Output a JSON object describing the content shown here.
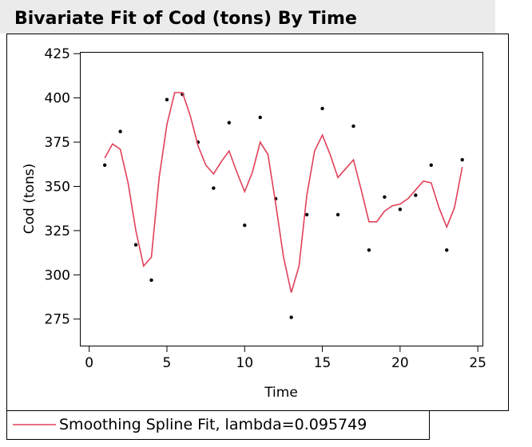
{
  "title": "Bivariate Fit of Cod (tons) By Time",
  "chart_data": {
    "type": "scatter",
    "xlabel": "Time",
    "ylabel": "Cod (tons)",
    "xlim": [
      -0.6,
      25.3
    ],
    "ylim": [
      260,
      426
    ],
    "xticks": [
      0,
      5,
      10,
      15,
      20,
      25
    ],
    "yticks": [
      275,
      300,
      325,
      350,
      375,
      400,
      425
    ],
    "series": [
      {
        "type": "scatter",
        "color": "#000000",
        "x": [
          1,
          2,
          3,
          4,
          5,
          6,
          7,
          8,
          9,
          10,
          11,
          12,
          13,
          14,
          15,
          16,
          17,
          18,
          19,
          20,
          21,
          22,
          23,
          24
        ],
        "values": [
          362,
          381,
          317,
          297,
          399,
          402,
          375,
          349,
          386,
          328,
          389,
          343,
          276,
          334,
          394,
          334,
          384,
          314,
          344,
          337,
          345,
          362,
          314,
          365
        ]
      },
      {
        "type": "line",
        "name": "Smoothing Spline Fit, lambda=0.095749",
        "color": "#e0405a",
        "x": [
          1,
          1.5,
          2,
          2.5,
          3,
          3.5,
          4,
          4.5,
          5,
          5.5,
          6,
          6.5,
          7,
          7.5,
          8,
          8.5,
          9,
          9.5,
          10,
          10.5,
          11,
          11.5,
          12,
          12.5,
          13,
          13.5,
          14,
          14.5,
          15,
          15.5,
          16,
          16.5,
          17,
          17.5,
          18,
          18.5,
          19,
          19.5,
          20,
          20.5,
          21,
          21.5,
          22,
          22.5,
          23,
          23.5,
          24
        ],
        "values": [
          366,
          374,
          371,
          352,
          325,
          305,
          310,
          355,
          385,
          403,
          403,
          390,
          373,
          362,
          357,
          364,
          370,
          358,
          347,
          358,
          375,
          368,
          340,
          310,
          290,
          305,
          345,
          370,
          379,
          368,
          355,
          360,
          365,
          348,
          330,
          330,
          336,
          339,
          340,
          343,
          348,
          353,
          352,
          338,
          327,
          338,
          361
        ]
      }
    ]
  }
}
